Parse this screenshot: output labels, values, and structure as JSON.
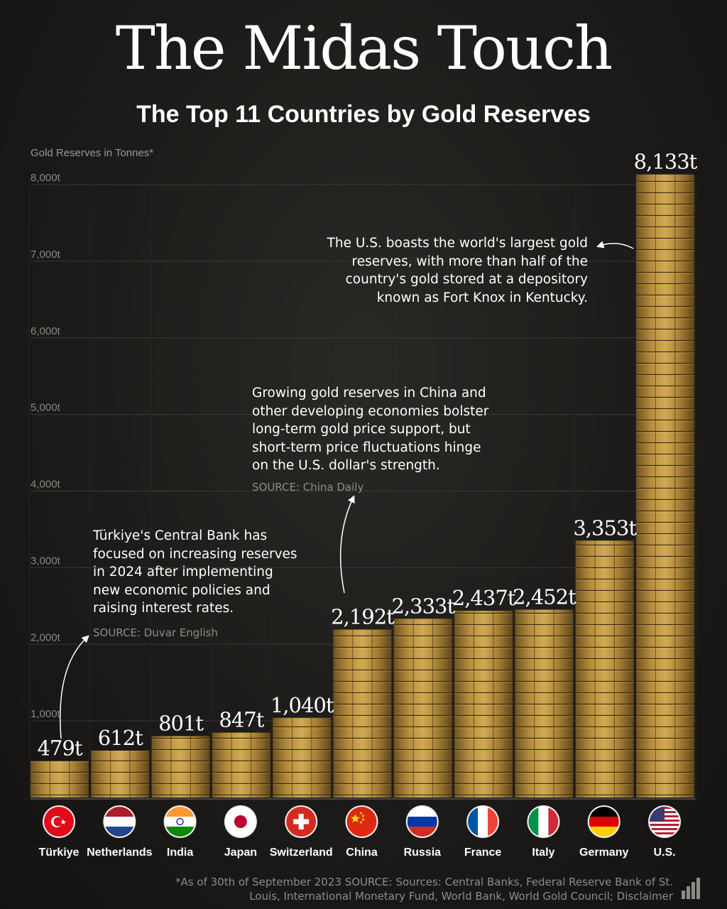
{
  "header": {
    "title": "The Midas Touch",
    "subtitle": "The Top 11 Countries by Gold Reserves"
  },
  "chart_data": {
    "type": "bar",
    "ylabel": "Gold Reserves in Tonnes*",
    "ylim": [
      0,
      8200
    ],
    "yticks": [
      1000,
      2000,
      3000,
      4000,
      5000,
      6000,
      7000,
      8000
    ],
    "ytick_labels": [
      "1,000t",
      "2,000t",
      "3,000t",
      "4,000t",
      "5,000t",
      "6,000t",
      "7,000t",
      "8,000t"
    ],
    "grid": true,
    "categories": [
      "Türkiye",
      "Netherlands",
      "India",
      "Japan",
      "Switzerland",
      "China",
      "Russia",
      "France",
      "Italy",
      "Germany",
      "U.S."
    ],
    "values": [
      479,
      612,
      801,
      847,
      1040,
      2192,
      2333,
      2437,
      2452,
      3353,
      8133
    ],
    "data_labels": [
      "479t",
      "612t",
      "801t",
      "847t",
      "1,040t",
      "2,192t",
      "2,333t",
      "2,437t",
      "2,452t",
      "3,353t",
      "8,133t"
    ],
    "bar_color": "#b08a3e"
  },
  "annotations": {
    "us": {
      "lines": [
        "The U.S. boasts the world's largest gold",
        "reserves, with more than half of the",
        "country's gold stored at a depository",
        "known as Fort Knox in Kentucky."
      ]
    },
    "china": {
      "lines": [
        "Growing gold reserves in China and",
        "other developing economies bolster",
        "long-term gold price support, but",
        "short-term price fluctuations hinge",
        "on the U.S. dollar's strength."
      ],
      "source": "SOURCE: China Daily"
    },
    "turkiye": {
      "lines": [
        "Türkiye's Central Bank has",
        "focused on increasing reserves",
        "in 2024 after implementing",
        "new economic policies and",
        "raising interest rates."
      ],
      "source": "SOURCE: Duvar English"
    }
  },
  "footnote": "*As of 30th of September 2023 SOURCE: Sources: Central Banks, Federal Reserve Bank of St. Louis, International Monetary Fund, World Bank, World Gold Council; Disclaimer",
  "icons": {
    "flags": [
      "turkiye-flag-icon",
      "netherlands-flag-icon",
      "india-flag-icon",
      "japan-flag-icon",
      "switzerland-flag-icon",
      "china-flag-icon",
      "russia-flag-icon",
      "france-flag-icon",
      "italy-flag-icon",
      "germany-flag-icon",
      "us-flag-icon"
    ],
    "brand": "bar-chart-icon"
  }
}
